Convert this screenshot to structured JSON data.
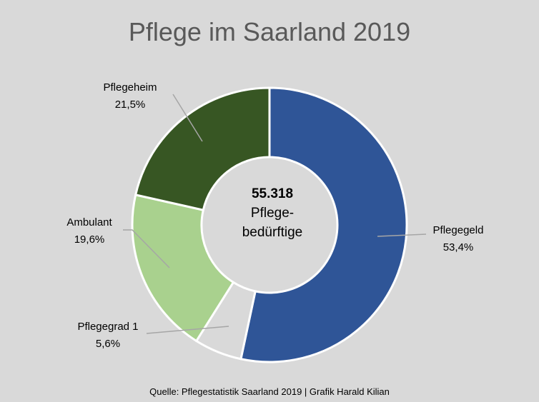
{
  "chart_data": {
    "type": "pie",
    "variant": "donut",
    "title": "Pflege im Saarland 2019",
    "center_label": {
      "value": "55.318",
      "line1": "Pflege-",
      "line2": "bedürftige"
    },
    "slices": [
      {
        "name": "Pflegegeld",
        "value": 53.4,
        "label": "53,4%",
        "color": "#2f5597"
      },
      {
        "name": "Pflegegrad 1",
        "value": 5.6,
        "label": "5,6%",
        "color": "#d9d9d9"
      },
      {
        "name": "Ambulant",
        "value": 19.6,
        "label": "19,6%",
        "color": "#a9d18e"
      },
      {
        "name": "Pflegeheim",
        "value": 21.5,
        "label": "21,5%",
        "color": "#375623"
      }
    ],
    "source": "Quelle: Pflegestatistik Saarland 2019 | Grafik Harald Kilian"
  }
}
